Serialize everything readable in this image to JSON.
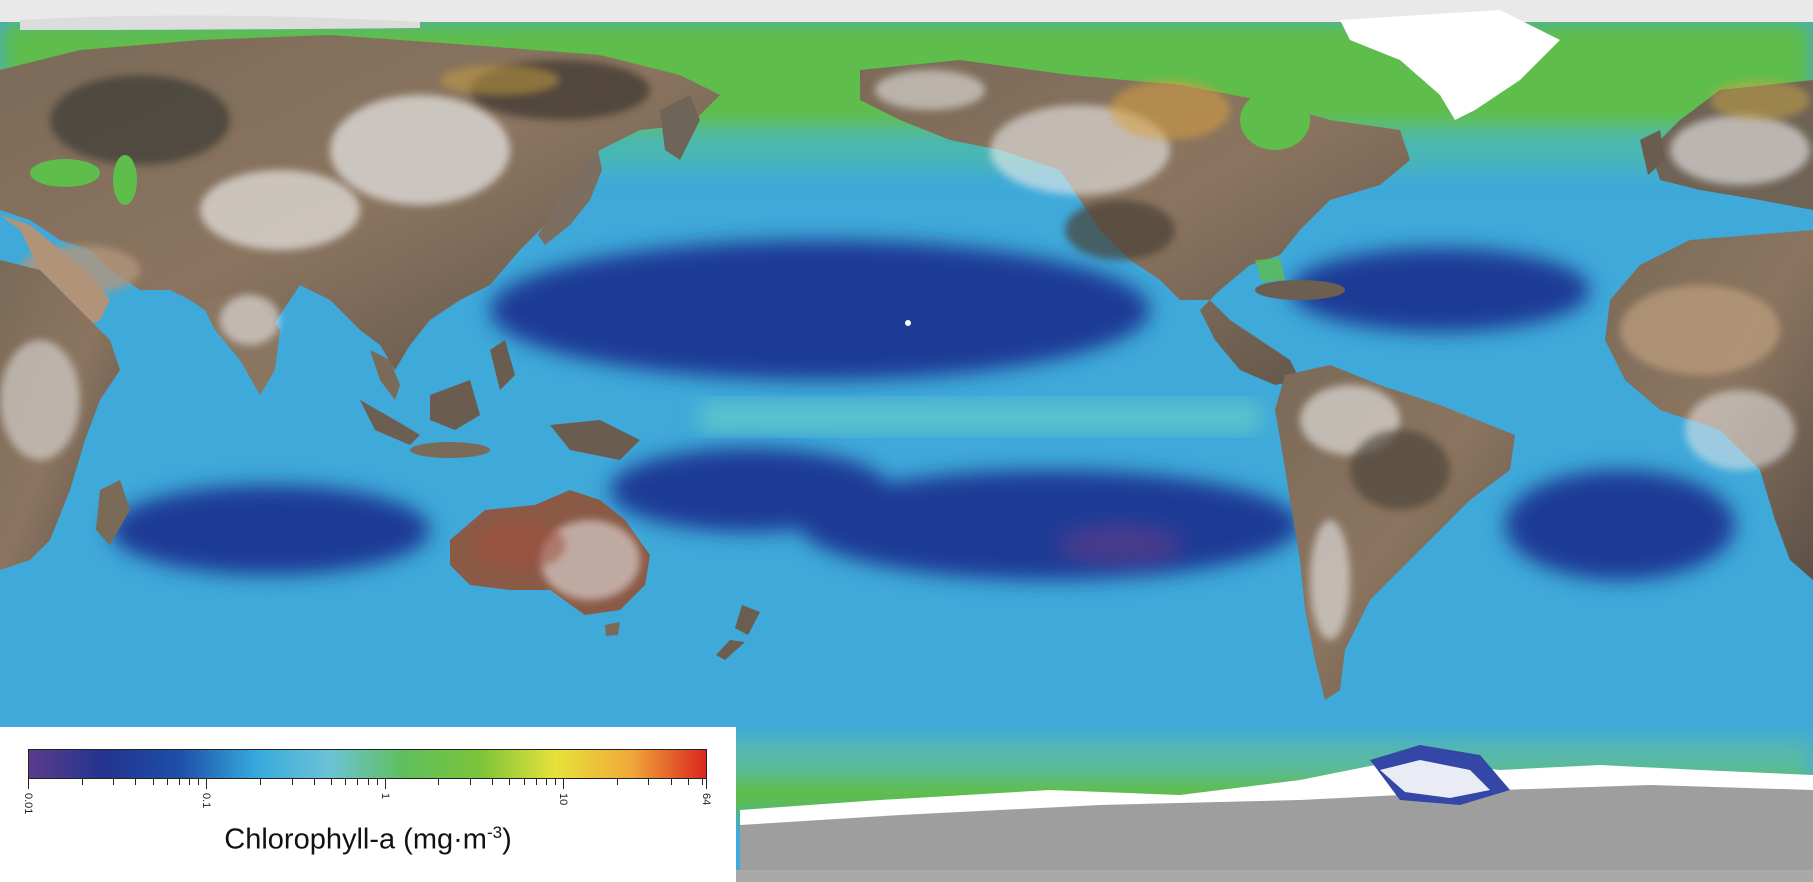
{
  "legend": {
    "title_main": "Chlorophyll-a (mg·m",
    "title_exp": "-3",
    "title_close": ")",
    "scale": "log",
    "range": [
      0.01,
      64
    ],
    "tick_labels": [
      "0.01",
      "0.1",
      "1",
      "10",
      "64"
    ],
    "tick_values": [
      0.01,
      0.1,
      1,
      10,
      64
    ],
    "colormap": [
      "#5a3c8c",
      "#23348f",
      "#1d4fa8",
      "#36a8dc",
      "#6cc3d6",
      "#5fbf5a",
      "#7cc43a",
      "#e8e23a",
      "#f0a83a",
      "#d9261e"
    ]
  },
  "colors": {
    "land_polar": "#9e9e9e",
    "ice": "#ffffff",
    "ocean_low": "#1f3f9a",
    "ocean_mid": "#3aa6d8",
    "ocean_high": "#5fbf4a"
  }
}
